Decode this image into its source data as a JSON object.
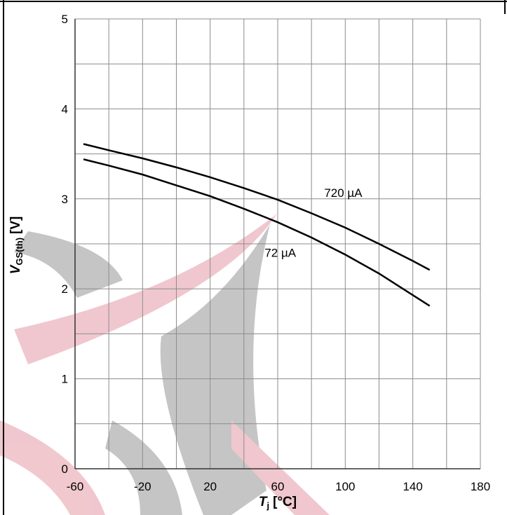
{
  "chart_data": {
    "type": "line",
    "x_label": {
      "symbol": "T",
      "subscript": "j",
      "unit": "[°C]"
    },
    "y_label": {
      "symbol": "V",
      "subscript": "GS(th)",
      "unit": "[V]"
    },
    "x": [
      -55,
      -40,
      -20,
      0,
      20,
      40,
      60,
      80,
      100,
      120,
      140,
      150
    ],
    "series": [
      {
        "name": "720 µA",
        "color": "#000000",
        "values": [
          3.61,
          3.54,
          3.45,
          3.35,
          3.24,
          3.12,
          2.99,
          2.84,
          2.68,
          2.5,
          2.31,
          2.21
        ]
      },
      {
        "name": "72 µA",
        "color": "#000000",
        "values": [
          3.44,
          3.37,
          3.27,
          3.15,
          3.03,
          2.89,
          2.74,
          2.57,
          2.38,
          2.17,
          1.93,
          1.81
        ]
      }
    ],
    "xlim": [
      -60,
      180
    ],
    "xticks": [
      -60,
      -20,
      20,
      60,
      100,
      140,
      180
    ],
    "minor_xticks": [
      -40,
      0,
      40,
      80,
      120,
      160
    ],
    "ylim": [
      0,
      5
    ],
    "yticks": [
      0,
      1,
      2,
      3,
      4,
      5
    ],
    "minor_yticks": [
      0.5,
      1.5,
      2.5,
      3.5,
      4.5
    ],
    "grid": true
  }
}
